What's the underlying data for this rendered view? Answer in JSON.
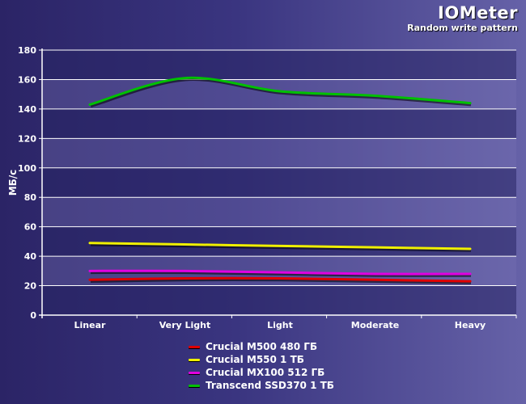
{
  "header": {
    "title": "IOMeter",
    "subtitle": "Random write pattern"
  },
  "chart_data": {
    "type": "line",
    "title": "IOMeter",
    "subtitle": "Random write pattern",
    "xlabel": "",
    "ylabel": "МБ/с",
    "categories": [
      "Linear",
      "Very Light",
      "Light",
      "Moderate",
      "Heavy"
    ],
    "ylim": [
      0,
      180
    ],
    "yticks": [
      0,
      20,
      40,
      60,
      80,
      100,
      120,
      140,
      160,
      180
    ],
    "grid": true,
    "legend_position": "bottom-center",
    "series": [
      {
        "name": "Crucial M500 480 ГБ",
        "color": "#e00000",
        "values": [
          24,
          25,
          25,
          24,
          23
        ]
      },
      {
        "name": "Crucial M550 1 ТБ",
        "color": "#f0f000",
        "values": [
          49,
          48,
          47,
          46,
          45
        ]
      },
      {
        "name": "Crucial MX100 512 ГБ",
        "color": "#e000e0",
        "values": [
          30,
          30,
          29,
          28,
          28
        ]
      },
      {
        "name": "Transcend SSD370 1 ТБ",
        "color": "#00c000",
        "values": [
          143,
          161,
          152,
          149,
          144
        ]
      }
    ]
  }
}
